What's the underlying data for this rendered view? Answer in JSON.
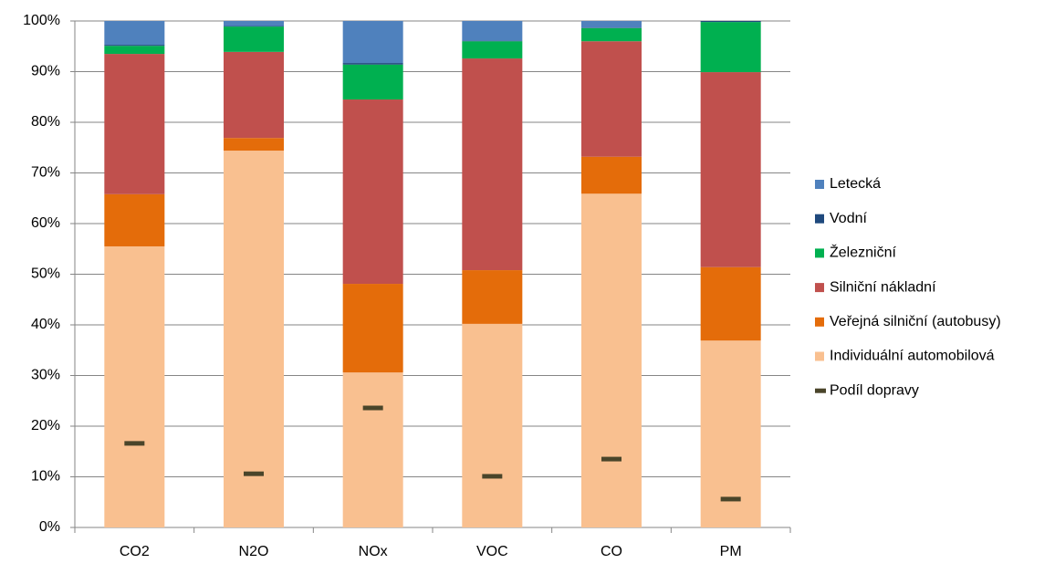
{
  "chart_data": {
    "type": "stacked-bar-100",
    "categories": [
      "CO2",
      "N2O",
      "NOx",
      "VOC",
      "CO",
      "PM"
    ],
    "series": [
      {
        "name": "Individuální automobilová",
        "color": "#f9c090",
        "values": [
          55.5,
          74.4,
          30.6,
          40.2,
          65.9,
          36.9
        ]
      },
      {
        "name": "Veřejná silniční (autobusy)",
        "color": "#e46c0a",
        "values": [
          10.3,
          2.5,
          17.5,
          10.6,
          7.3,
          14.5
        ]
      },
      {
        "name": "Silniční nákladní",
        "color": "#c0504d",
        "values": [
          27.7,
          17.0,
          36.4,
          41.8,
          22.8,
          38.5
        ]
      },
      {
        "name": "Železniční",
        "color": "#00b050",
        "values": [
          1.6,
          5.0,
          6.9,
          3.4,
          2.6,
          9.9
        ]
      },
      {
        "name": "Vodní",
        "color": "#1f497d",
        "values": [
          0.2,
          0.1,
          0.3,
          0.1,
          0.1,
          0.2
        ]
      },
      {
        "name": "Letecká",
        "color": "#4f81bd",
        "values": [
          4.7,
          1.0,
          8.3,
          3.9,
          1.3,
          0
        ]
      },
      {
        "name": "Podíl dopravy",
        "color": "#4a452a",
        "type": "marker",
        "values": [
          16.6,
          10.6,
          23.6,
          10.1,
          13.5,
          5.6
        ]
      }
    ],
    "ylim": [
      0,
      100
    ],
    "yticks": [
      {
        "value": 0,
        "label": "0%"
      },
      {
        "value": 10,
        "label": "10%"
      },
      {
        "value": 20,
        "label": "20%"
      },
      {
        "value": 30,
        "label": "30%"
      },
      {
        "value": 40,
        "label": "40%"
      },
      {
        "value": 50,
        "label": "50%"
      },
      {
        "value": 60,
        "label": "60%"
      },
      {
        "value": 70,
        "label": "70%"
      },
      {
        "value": 80,
        "label": "80%"
      },
      {
        "value": 90,
        "label": "90%"
      },
      {
        "value": 100,
        "label": "100%"
      }
    ],
    "grid": true,
    "legend": "right"
  }
}
